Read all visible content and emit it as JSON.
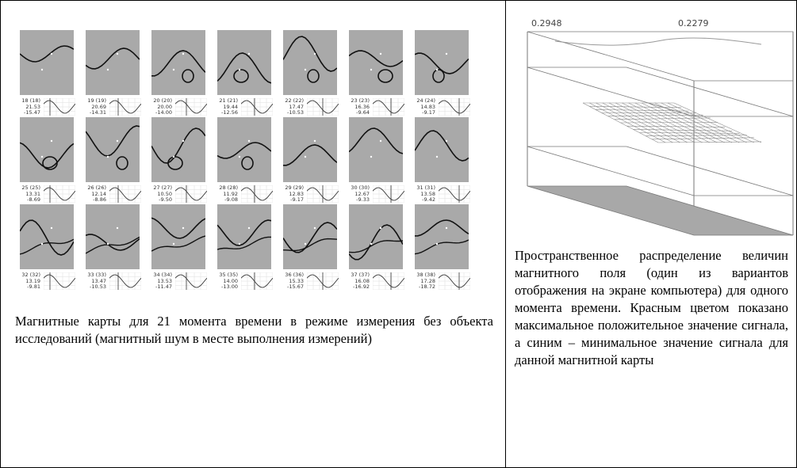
{
  "maps": [
    {
      "label": "18 (18)",
      "max": "21.53",
      "min": "-15.47"
    },
    {
      "label": "19 (19)",
      "max": "20.69",
      "min": "-14.31"
    },
    {
      "label": "20 (20)",
      "max": "20.00",
      "min": "-14.00"
    },
    {
      "label": "21 (21)",
      "max": "19.44",
      "min": "-12.56"
    },
    {
      "label": "22 (22)",
      "max": "17.47",
      "min": "-10.53"
    },
    {
      "label": "23 (23)",
      "max": "16.36",
      "min": "-9.64"
    },
    {
      "label": "24 (24)",
      "max": "14.83",
      "min": "-9.17"
    },
    {
      "label": "25 (25)",
      "max": "13.31",
      "min": "-8.69"
    },
    {
      "label": "26 (26)",
      "max": "12.14",
      "min": "-8.86"
    },
    {
      "label": "27 (27)",
      "max": "10.50",
      "min": "-9.50"
    },
    {
      "label": "28 (28)",
      "max": "11.92",
      "min": "-9.08"
    },
    {
      "label": "29 (29)",
      "max": "12.83",
      "min": "-9.17"
    },
    {
      "label": "30 (30)",
      "max": "12.67",
      "min": "-9.33"
    },
    {
      "label": "31 (31)",
      "max": "13.58",
      "min": "-9.42"
    },
    {
      "label": "32 (32)",
      "max": "13.19",
      "min": "-9.81"
    },
    {
      "label": "33 (33)",
      "max": "13.47",
      "min": "-10.53"
    },
    {
      "label": "34 (34)",
      "max": "13.53",
      "min": "-11.47"
    },
    {
      "label": "35 (35)",
      "max": "14.00",
      "min": "-13.00"
    },
    {
      "label": "36 (36)",
      "max": "15.33",
      "min": "-15.67"
    },
    {
      "label": "37 (37)",
      "max": "16.08",
      "min": "-16.92"
    },
    {
      "label": "38 (38)",
      "max": "17.28",
      "min": "-18.72"
    }
  ],
  "left_caption": "Магнитные карты для 21 момента времени в режиме измерения без объекта исследований (магнитный шум в месте выполнения измерений)",
  "right_labels": [
    "0.2948",
    "0.2279"
  ],
  "right_caption": "Пространственное распределение величин магнитного поля (один из вариантов отображения на экране компьютера) для одного момента времени. Красным цветом показано максимальное положительное значение сигнала, а синим – минимальное значение сигнала для данной магнитной карты"
}
